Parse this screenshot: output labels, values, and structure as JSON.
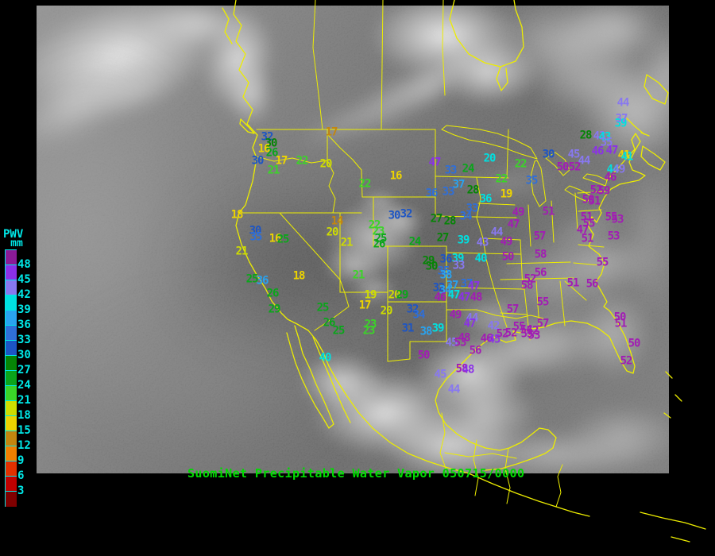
{
  "title": {
    "text": "SuomiNet Precipitable Water Vapor 050715/0000"
  },
  "colors": {
    "background": "#000000",
    "outline": "#EDED00",
    "title_color": "#00DC00",
    "label_color": "#00E8E8"
  },
  "legend": {
    "title": "PWV",
    "unit": "mm",
    "labels": [
      "48",
      "45",
      "42",
      "39",
      "36",
      "33",
      "30",
      "27",
      "24",
      "21",
      "18",
      "15",
      "12",
      "9",
      "6",
      "3"
    ],
    "swatches": [
      "#8B1A96",
      "#8B30E8",
      "#8878F0",
      "#00E0E0",
      "#29A3F0",
      "#2F6FD8",
      "#1D55C4",
      "#068406",
      "#0BA51B",
      "#3BD428",
      "#CFDD00",
      "#EDD400",
      "#C4860E",
      "#F08000",
      "#E03000",
      "#C00000",
      "#800000"
    ]
  },
  "palette": {
    "mg": "#A21CB4",
    "vi": "#8B30E8",
    "sl": "#8878F0",
    "cy": "#00E0E0",
    "sk": "#29A3F0",
    "bl": "#2F6FD8",
    "db": "#1D55C4",
    "dg": "#068406",
    "gr": "#0BA51B",
    "li": "#3BD428",
    "yg": "#CFDD00",
    "ye": "#EDD400",
    "dy": "#C4860E",
    "or": "#F08000",
    "rd": "#E03000",
    "dr": "#B00000"
  },
  "stations": [
    [
      32,
      336,
      173,
      "db"
    ],
    [
      30,
      341,
      181,
      "dg"
    ],
    [
      16,
      332,
      188,
      "ye"
    ],
    [
      26,
      342,
      193,
      "gr"
    ],
    [
      30,
      324,
      203,
      "db"
    ],
    [
      17,
      354,
      203,
      "ye"
    ],
    [
      22,
      380,
      203,
      "li"
    ],
    [
      21,
      344,
      215,
      "li"
    ],
    [
      17,
      417,
      167,
      "dy"
    ],
    [
      20,
      410,
      207,
      "yg"
    ],
    [
      22,
      459,
      232,
      "li"
    ],
    [
      16,
      498,
      222,
      "ye"
    ],
    [
      18,
      298,
      271,
      "ye"
    ],
    [
      30,
      321,
      291,
      "db"
    ],
    [
      35,
      322,
      299,
      "bl"
    ],
    [
      16,
      346,
      301,
      "ye"
    ],
    [
      25,
      356,
      302,
      "gr"
    ],
    [
      21,
      304,
      317,
      "yg"
    ],
    [
      14,
      424,
      279,
      "dy"
    ],
    [
      20,
      418,
      293,
      "yg"
    ],
    [
      21,
      436,
      306,
      "yg"
    ],
    [
      22,
      471,
      284,
      "li"
    ],
    [
      23,
      476,
      292,
      "li"
    ],
    [
      25,
      479,
      301,
      "gr"
    ],
    [
      26,
      477,
      308,
      "gr"
    ],
    [
      18,
      376,
      348,
      "ye"
    ],
    [
      25,
      317,
      352,
      "gr"
    ],
    [
      36,
      330,
      354,
      "sk"
    ],
    [
      26,
      343,
      370,
      "gr"
    ],
    [
      29,
      345,
      390,
      "gr"
    ],
    [
      21,
      451,
      347,
      "li"
    ],
    [
      19,
      466,
      372,
      "yg"
    ],
    [
      17,
      459,
      385,
      "ye"
    ],
    [
      25,
      406,
      388,
      "gr"
    ],
    [
      26,
      414,
      407,
      "gr"
    ],
    [
      25,
      426,
      417,
      "gr"
    ],
    [
      23,
      466,
      409,
      "li"
    ],
    [
      23,
      464,
      417,
      "li"
    ],
    [
      20,
      486,
      392,
      "yg"
    ],
    [
      20,
      496,
      372,
      "yg"
    ],
    [
      29,
      506,
      372,
      "gr"
    ],
    [
      40,
      409,
      451,
      "cy"
    ],
    [
      50,
      533,
      448,
      "mg"
    ],
    [
      45,
      554,
      472,
      "sl"
    ],
    [
      44,
      571,
      491,
      "sl"
    ],
    [
      47,
      547,
      205,
      "vi"
    ],
    [
      33,
      567,
      215,
      "bl"
    ],
    [
      24,
      589,
      213,
      "gr"
    ],
    [
      20,
      616,
      200,
      "cy"
    ],
    [
      37,
      577,
      233,
      "sk"
    ],
    [
      36,
      543,
      244,
      "bl"
    ],
    [
      33,
      564,
      242,
      "bl"
    ],
    [
      28,
      595,
      240,
      "dg"
    ],
    [
      36,
      611,
      251,
      "cy"
    ],
    [
      19,
      637,
      245,
      "ye"
    ],
    [
      22,
      631,
      226,
      "li"
    ],
    [
      22,
      655,
      207,
      "li"
    ],
    [
      30,
      690,
      195,
      "db"
    ],
    [
      35,
      669,
      228,
      "bl"
    ],
    [
      33,
      594,
      263,
      "bl"
    ],
    [
      34,
      586,
      273,
      "bl"
    ],
    [
      30,
      496,
      272,
      "db"
    ],
    [
      32,
      511,
      270,
      "db"
    ],
    [
      27,
      549,
      276,
      "dg"
    ],
    [
      28,
      566,
      279,
      "dg"
    ],
    [
      27,
      557,
      300,
      "dg"
    ],
    [
      24,
      522,
      305,
      "gr"
    ],
    [
      39,
      583,
      303,
      "cy"
    ],
    [
      43,
      607,
      306,
      "sl"
    ],
    [
      44,
      625,
      293,
      "sl"
    ],
    [
      49,
      652,
      268,
      "mg"
    ],
    [
      47,
      646,
      283,
      "mg"
    ],
    [
      51,
      690,
      267,
      "mg"
    ],
    [
      57,
      679,
      298,
      "mg"
    ],
    [
      49,
      637,
      305,
      "mg"
    ],
    [
      50,
      639,
      324,
      "mg"
    ],
    [
      58,
      680,
      321,
      "mg"
    ],
    [
      40,
      605,
      326,
      "cy"
    ],
    [
      39,
      576,
      326,
      "cy"
    ],
    [
      36,
      561,
      327,
      "db"
    ],
    [
      29,
      539,
      329,
      "dg"
    ],
    [
      30,
      543,
      336,
      "dg"
    ],
    [
      33,
      577,
      335,
      "sl"
    ],
    [
      35,
      558,
      342,
      "bl"
    ],
    [
      38,
      561,
      347,
      "sk"
    ],
    [
      37,
      569,
      360,
      "sk"
    ],
    [
      37,
      587,
      358,
      "bl"
    ],
    [
      47,
      596,
      361,
      "vi"
    ],
    [
      32,
      552,
      363,
      "db"
    ],
    [
      34,
      560,
      366,
      "sk"
    ],
    [
      46,
      554,
      375,
      "mg"
    ],
    [
      47,
      571,
      372,
      "cy"
    ],
    [
      47,
      584,
      375,
      "vi"
    ],
    [
      48,
      599,
      375,
      "mg"
    ],
    [
      57,
      645,
      390,
      "mg"
    ],
    [
      52,
      667,
      352,
      "mg"
    ],
    [
      58,
      663,
      360,
      "mg"
    ],
    [
      56,
      680,
      344,
      "mg"
    ],
    [
      55,
      683,
      381,
      "mg"
    ],
    [
      51,
      721,
      357,
      "mg"
    ],
    [
      56,
      745,
      358,
      "mg"
    ],
    [
      55,
      758,
      331,
      "mg"
    ],
    [
      32,
      519,
      390,
      "db"
    ],
    [
      34,
      527,
      397,
      "bl"
    ],
    [
      31,
      513,
      414,
      "db"
    ],
    [
      38,
      536,
      418,
      "sk"
    ],
    [
      39,
      551,
      414,
      "cy"
    ],
    [
      49,
      573,
      397,
      "mg"
    ],
    [
      44,
      594,
      401,
      "sl"
    ],
    [
      47,
      591,
      408,
      "vi"
    ],
    [
      42,
      621,
      411,
      "sl"
    ],
    [
      48,
      584,
      426,
      "mg"
    ],
    [
      45,
      568,
      432,
      "sl"
    ],
    [
      53,
      579,
      432,
      "mg"
    ],
    [
      56,
      598,
      442,
      "mg"
    ],
    [
      46,
      612,
      427,
      "mg"
    ],
    [
      45,
      622,
      428,
      "vi"
    ],
    [
      52,
      632,
      421,
      "mg"
    ],
    [
      55,
      653,
      412,
      "mg"
    ],
    [
      54,
      662,
      416,
      "mg"
    ],
    [
      52,
      670,
      417,
      "mg"
    ],
    [
      57,
      683,
      408,
      "mg"
    ],
    [
      52,
      643,
      420,
      "mg"
    ],
    [
      55,
      663,
      421,
      "mg"
    ],
    [
      53,
      672,
      423,
      "mg"
    ],
    [
      58,
      581,
      465,
      "mg"
    ],
    [
      48,
      589,
      466,
      "vi"
    ],
    [
      50,
      780,
      400,
      "mg"
    ],
    [
      51,
      781,
      408,
      "mg"
    ],
    [
      50,
      798,
      433,
      "mg"
    ],
    [
      52,
      788,
      455,
      "mg"
    ],
    [
      47,
      733,
      290,
      "mg"
    ],
    [
      51,
      739,
      301,
      "mg"
    ],
    [
      53,
      772,
      298,
      "mg"
    ],
    [
      51,
      738,
      274,
      "mg"
    ],
    [
      55,
      741,
      282,
      "mg"
    ],
    [
      55,
      769,
      274,
      "mg"
    ],
    [
      53,
      777,
      277,
      "mg"
    ],
    [
      28,
      737,
      171,
      "dg"
    ],
    [
      43,
      754,
      172,
      "sl"
    ],
    [
      43,
      761,
      173,
      "cy"
    ],
    [
      35,
      763,
      180,
      "sl"
    ],
    [
      39,
      781,
      156,
      "cy"
    ],
    [
      37,
      782,
      150,
      "sl"
    ],
    [
      44,
      784,
      130,
      "sl"
    ],
    [
      46,
      752,
      191,
      "vi"
    ],
    [
      47,
      770,
      190,
      "vi"
    ],
    [
      45,
      722,
      195,
      "sl"
    ],
    [
      41,
      785,
      196,
      "ye"
    ],
    [
      41,
      789,
      198,
      "cy"
    ],
    [
      44,
      735,
      203,
      "sl"
    ],
    [
      50,
      708,
      211,
      "mg"
    ],
    [
      52,
      723,
      211,
      "mg"
    ],
    [
      44,
      771,
      214,
      "cy"
    ],
    [
      49,
      779,
      214,
      "sl"
    ],
    [
      46,
      768,
      224,
      "mg"
    ],
    [
      52,
      750,
      240,
      "mg"
    ],
    [
      59,
      760,
      241,
      "mg"
    ],
    [
      50,
      740,
      252,
      "mg"
    ],
    [
      51,
      748,
      254,
      "mg"
    ]
  ]
}
